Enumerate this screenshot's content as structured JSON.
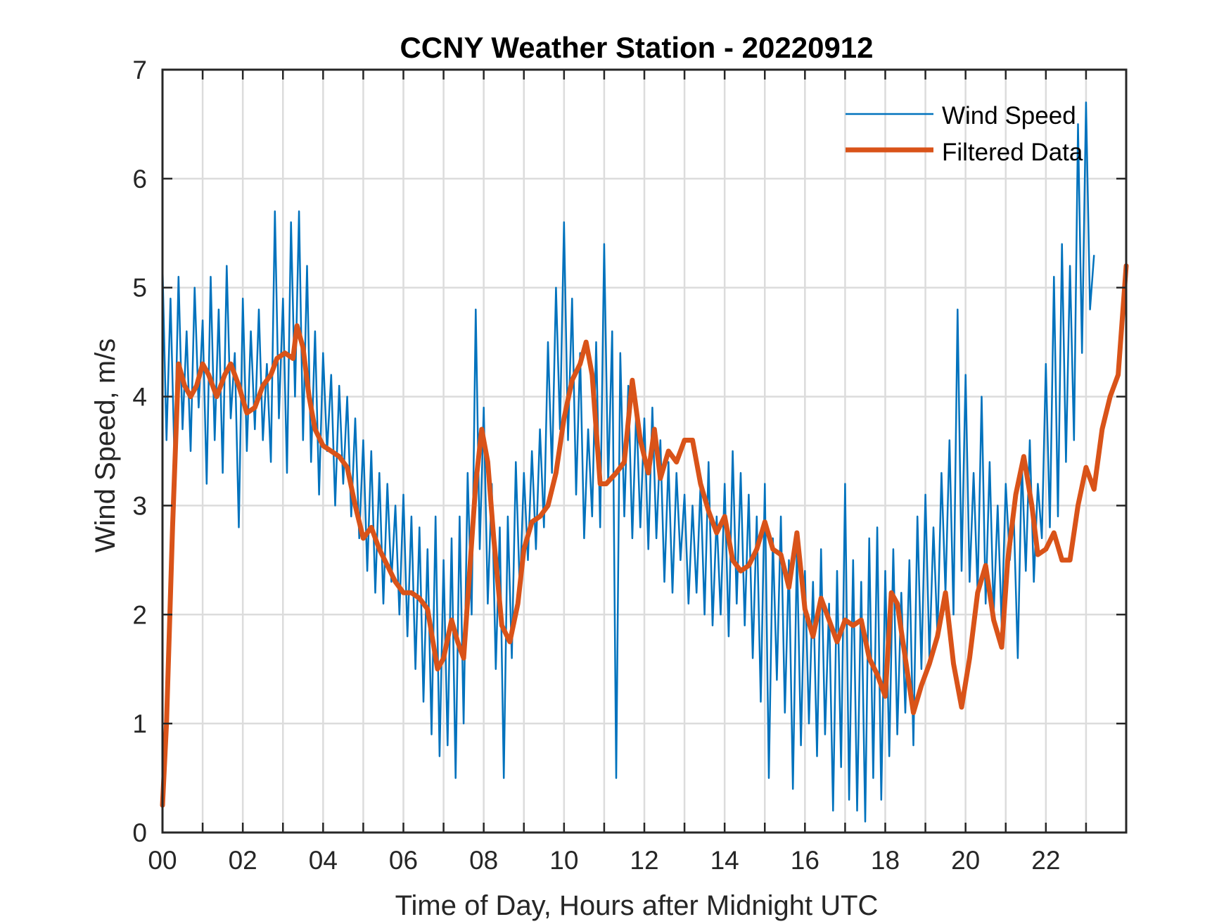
{
  "chart_data": {
    "type": "line",
    "title": "CCNY Weather Station - 20220912",
    "xlabel": "Time of Day, Hours after Midnight UTC",
    "ylabel": "Wind Speed, m/s",
    "xlim": [
      0,
      24
    ],
    "ylim": [
      0,
      7
    ],
    "xticks": [
      0,
      1,
      2,
      3,
      4,
      5,
      6,
      7,
      8,
      9,
      10,
      11,
      12,
      13,
      14,
      15,
      16,
      17,
      18,
      19,
      20,
      21,
      22,
      23
    ],
    "xtick_labels": [
      "00",
      "",
      "02",
      "",
      "04",
      "",
      "06",
      "",
      "08",
      "",
      "10",
      "",
      "12",
      "",
      "14",
      "",
      "16",
      "",
      "18",
      "",
      "20",
      "",
      "22",
      ""
    ],
    "yticks": [
      0,
      1,
      2,
      3,
      4,
      5,
      6,
      7
    ],
    "ytick_labels": [
      "0",
      "1",
      "2",
      "3",
      "4",
      "5",
      "6",
      "7"
    ],
    "grid": true,
    "legend": {
      "placement": "top-right",
      "entries": [
        "Wind Speed",
        "Filtered Data"
      ]
    },
    "colors": {
      "wind_speed": "#0072BD",
      "filtered": "#D95319"
    },
    "series": [
      {
        "name": "Wind Speed",
        "x_start": 0,
        "x_step": 0.1,
        "values": [
          5.2,
          3.6,
          4.9,
          3.4,
          5.1,
          3.7,
          4.6,
          3.5,
          5.0,
          3.9,
          4.7,
          3.2,
          5.1,
          3.6,
          4.8,
          3.3,
          5.2,
          3.8,
          4.4,
          2.8,
          4.9,
          3.5,
          4.6,
          3.7,
          4.8,
          3.6,
          4.3,
          3.4,
          5.7,
          3.8,
          4.9,
          3.3,
          5.6,
          4.0,
          5.7,
          3.6,
          5.2,
          3.4,
          4.6,
          3.1,
          4.4,
          3.5,
          4.2,
          3.0,
          4.1,
          3.2,
          4.0,
          2.9,
          3.8,
          2.7,
          3.6,
          2.4,
          3.5,
          2.2,
          3.3,
          2.1,
          3.2,
          2.3,
          3.0,
          2.0,
          3.1,
          1.8,
          2.9,
          1.5,
          2.8,
          1.2,
          2.6,
          0.9,
          2.9,
          0.7,
          2.5,
          0.8,
          2.7,
          0.5,
          2.9,
          1.0,
          3.3,
          2.0,
          4.8,
          2.6,
          3.9,
          2.1,
          3.2,
          1.5,
          2.8,
          0.5,
          2.9,
          1.6,
          3.4,
          2.2,
          3.3,
          2.5,
          3.5,
          2.6,
          3.7,
          2.8,
          4.5,
          3.3,
          5.0,
          3.7,
          5.6,
          3.6,
          4.9,
          3.1,
          4.4,
          2.7,
          3.7,
          2.9,
          4.5,
          2.8,
          5.4,
          3.2,
          4.6,
          0.5,
          4.4,
          2.9,
          4.1,
          2.7,
          3.9,
          2.8,
          3.8,
          2.6,
          3.9,
          2.7,
          3.6,
          2.3,
          3.4,
          2.2,
          3.3,
          2.5,
          3.1,
          2.1,
          3.0,
          2.2,
          3.2,
          2.0,
          3.4,
          1.9,
          2.9,
          2.0,
          3.2,
          1.8,
          3.5,
          2.1,
          3.3,
          1.9,
          3.1,
          1.6,
          2.9,
          1.2,
          3.2,
          0.5,
          2.7,
          1.4,
          2.9,
          1.1,
          2.5,
          0.4,
          2.6,
          0.8,
          2.4,
          1.0,
          2.3,
          0.7,
          2.6,
          0.9,
          2.1,
          0.2,
          2.4,
          0.6,
          3.2,
          0.3,
          2.5,
          0.2,
          2.3,
          0.1,
          2.7,
          0.5,
          2.8,
          0.3,
          2.4,
          0.7,
          2.6,
          0.9,
          2.2,
          1.1,
          2.5,
          0.8,
          2.9,
          1.5,
          3.1,
          1.6,
          2.8,
          1.8,
          3.3,
          2.2,
          3.6,
          2.0,
          4.8,
          2.4,
          4.2,
          2.3,
          3.3,
          2.2,
          4.0,
          2.1,
          3.4,
          2.0,
          3.0,
          1.9,
          3.2,
          2.5,
          2.9,
          1.6,
          3.4,
          2.4,
          3.6,
          2.3,
          3.2,
          2.7,
          4.3,
          2.8,
          5.1,
          2.9,
          5.4,
          3.4,
          5.2,
          3.6,
          6.5,
          4.4,
          6.7,
          4.8,
          5.3
        ]
      },
      {
        "name": "Filtered Data",
        "x": [
          0,
          0.1,
          0.25,
          0.4,
          0.55,
          0.7,
          0.85,
          1.0,
          1.15,
          1.35,
          1.55,
          1.7,
          1.9,
          2.1,
          2.3,
          2.5,
          2.7,
          2.85,
          3.05,
          3.25,
          3.35,
          3.5,
          3.65,
          3.8,
          4.0,
          4.2,
          4.4,
          4.6,
          4.8,
          5.0,
          5.2,
          5.4,
          5.6,
          5.8,
          6.0,
          6.2,
          6.4,
          6.6,
          6.85,
          7.0,
          7.2,
          7.35,
          7.5,
          7.65,
          7.8,
          7.95,
          8.1,
          8.25,
          8.45,
          8.65,
          8.85,
          9.0,
          9.2,
          9.4,
          9.6,
          9.8,
          10.0,
          10.2,
          10.4,
          10.55,
          10.7,
          10.9,
          11.05,
          11.3,
          11.5,
          11.7,
          11.9,
          12.1,
          12.25,
          12.4,
          12.6,
          12.8,
          13.0,
          13.2,
          13.4,
          13.6,
          13.8,
          14.0,
          14.2,
          14.4,
          14.6,
          14.8,
          15.0,
          15.2,
          15.4,
          15.6,
          15.8,
          16.0,
          16.2,
          16.4,
          16.6,
          16.8,
          17.0,
          17.2,
          17.4,
          17.6,
          17.8,
          18.0,
          18.15,
          18.3,
          18.5,
          18.7,
          18.9,
          19.1,
          19.3,
          19.5,
          19.7,
          19.9,
          20.1,
          20.3,
          20.5,
          20.7,
          20.9,
          21.05,
          21.25,
          21.45,
          21.65,
          21.8,
          22.0,
          22.2,
          22.4,
          22.6,
          22.8,
          23.0,
          23.2,
          23.4,
          23.6,
          23.8,
          24.0
        ],
        "values": [
          0.25,
          1.0,
          2.8,
          4.3,
          4.1,
          4.0,
          4.1,
          4.3,
          4.2,
          4.0,
          4.2,
          4.3,
          4.1,
          3.85,
          3.9,
          4.1,
          4.2,
          4.35,
          4.4,
          4.35,
          4.65,
          4.45,
          4.0,
          3.7,
          3.55,
          3.5,
          3.45,
          3.35,
          3.0,
          2.7,
          2.8,
          2.6,
          2.45,
          2.3,
          2.2,
          2.2,
          2.15,
          2.05,
          1.5,
          1.6,
          1.95,
          1.75,
          1.6,
          2.4,
          3.2,
          3.7,
          3.4,
          2.7,
          1.9,
          1.75,
          2.1,
          2.6,
          2.85,
          2.9,
          3.0,
          3.3,
          3.8,
          4.15,
          4.3,
          4.5,
          4.2,
          3.2,
          3.2,
          3.3,
          3.4,
          4.15,
          3.6,
          3.3,
          3.7,
          3.25,
          3.5,
          3.4,
          3.6,
          3.6,
          3.2,
          2.95,
          2.75,
          2.9,
          2.5,
          2.4,
          2.45,
          2.6,
          2.85,
          2.6,
          2.55,
          2.25,
          2.75,
          2.05,
          1.8,
          2.15,
          1.95,
          1.75,
          1.95,
          1.9,
          1.95,
          1.6,
          1.45,
          1.25,
          2.2,
          2.1,
          1.6,
          1.1,
          1.35,
          1.55,
          1.8,
          2.2,
          1.55,
          1.15,
          1.6,
          2.2,
          2.45,
          1.95,
          1.7,
          2.5,
          3.1,
          3.45,
          3.0,
          2.55,
          2.6,
          2.75,
          2.5,
          2.5,
          3.0,
          3.35,
          3.15,
          3.7,
          4.0,
          4.2,
          5.2
        ]
      }
    ]
  }
}
